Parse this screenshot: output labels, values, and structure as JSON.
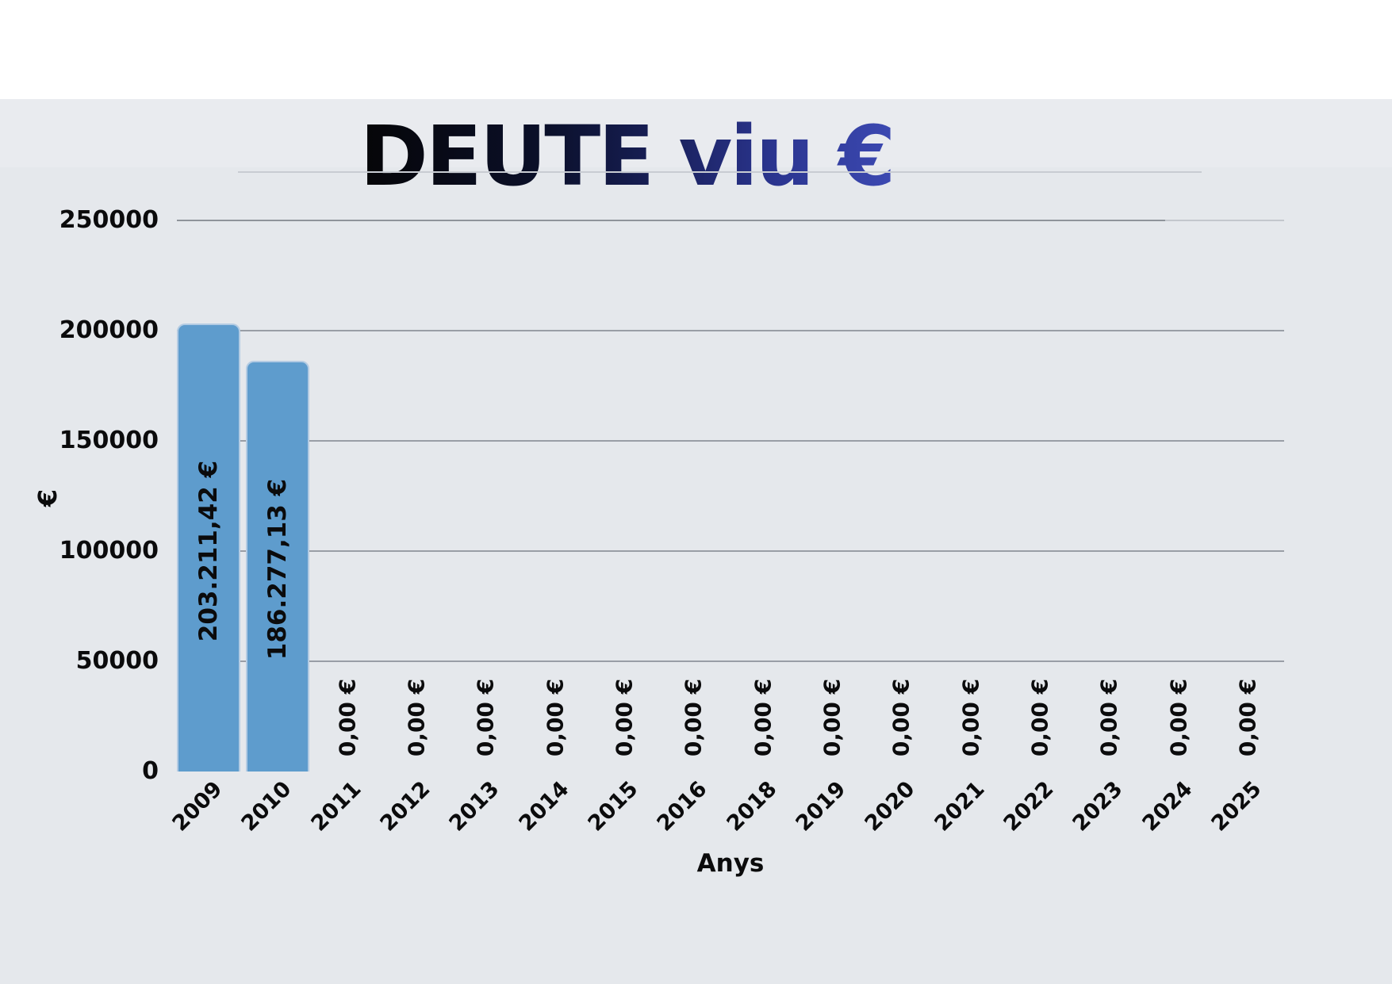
{
  "title": {
    "text": "DEUTE viu €"
  },
  "y_axis": {
    "label": "€"
  },
  "x_axis": {
    "label": "Anys"
  },
  "chart_data": {
    "type": "bar",
    "title": "DEUTE viu €",
    "xlabel": "Anys",
    "ylabel": "€",
    "ylim": [
      0,
      250000
    ],
    "yticks": [
      0,
      50000,
      100000,
      150000,
      200000,
      250000
    ],
    "ytick_labels": [
      "0",
      "50000",
      "100000",
      "150000",
      "200000",
      "250000"
    ],
    "grid": true,
    "legend": false,
    "categories": [
      "2009",
      "2010",
      "2011",
      "2012",
      "2013",
      "2014",
      "2015",
      "2016",
      "2018",
      "2019",
      "2020",
      "2021",
      "2022",
      "2023",
      "2024",
      "2025"
    ],
    "values": [
      203211.42,
      186277.13,
      0,
      0,
      0,
      0,
      0,
      0,
      0,
      0,
      0,
      0,
      0,
      0,
      0,
      0
    ],
    "bar_labels": [
      "203.211,42 €",
      "186.277,13 €",
      "0,00 €",
      "0,00 €",
      "0,00 €",
      "0,00 €",
      "0,00 €",
      "0,00 €",
      "0,00 €",
      "0,00 €",
      "0,00 €",
      "0,00 €",
      "0,00 €",
      "0,00 €",
      "0,00 €",
      "0,00 €"
    ],
    "colors": {
      "bar": "#5e9ccd",
      "bar_edge": "#b3cbe3",
      "background": "#e5e8ec",
      "top_band": "#ffffff",
      "gridline": "#999ea6",
      "gridline_light": "#c3c7cd",
      "label": "#0b0b0c",
      "title_gradient_start": "#050507",
      "title_gradient_end": "#3c49b2"
    }
  }
}
